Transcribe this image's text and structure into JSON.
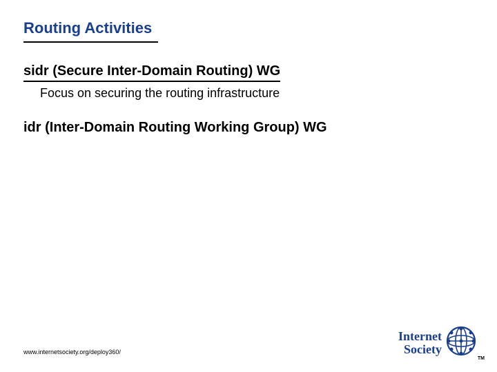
{
  "title": {
    "text": "Routing Activities",
    "color": "#1b3f8f",
    "fontsize": 22,
    "underline_width": 195,
    "underline_color": "#000000"
  },
  "content": {
    "sidr_heading": "sidr (Secure Inter-Domain Routing) WG",
    "sidr_heading_fontsize": 20,
    "sidr_sub": "Focus on securing the routing infrastructure",
    "sidr_sub_fontsize": 18,
    "idr_heading": "idr (Inter-Domain Routing Working Group) WG",
    "idr_heading_fontsize": 20
  },
  "footer": {
    "url": "www.internetsociety.org/deploy360/",
    "fontsize": 9
  },
  "logo": {
    "line1": "Internet",
    "line2": "Society",
    "text_color": "#1b3f8f",
    "text_fontsize": 18,
    "globe_color": "#1b3f8f",
    "globe_size": 44,
    "tm": "TM"
  },
  "background_color": "#ffffff"
}
